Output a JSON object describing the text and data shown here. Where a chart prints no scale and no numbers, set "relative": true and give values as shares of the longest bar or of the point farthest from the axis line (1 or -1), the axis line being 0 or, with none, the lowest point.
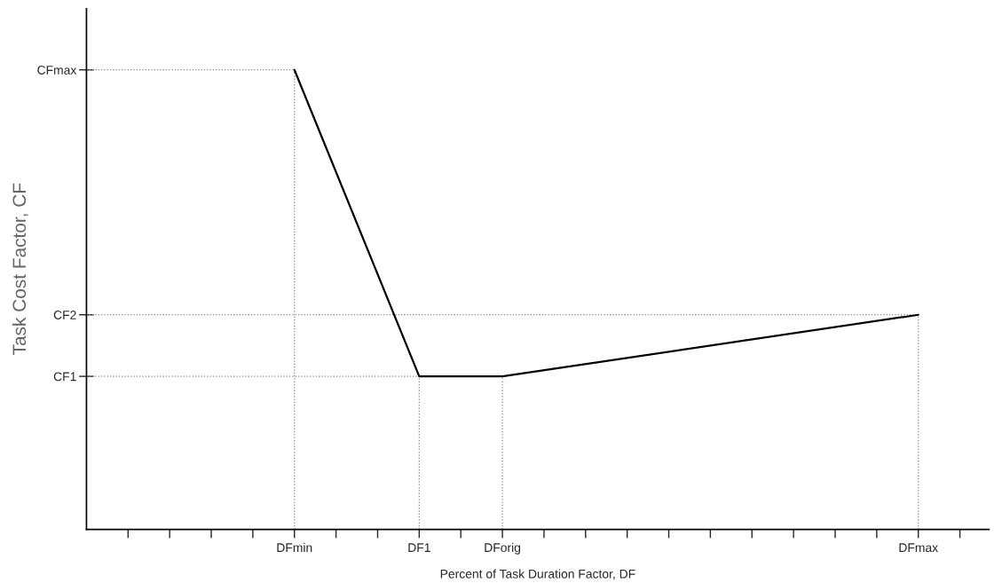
{
  "chart_data": {
    "type": "line",
    "xlabel": "Percent of Task Duration Factor, DF",
    "ylabel": "Task Cost Factor, CF",
    "relative": true,
    "categories": [
      null,
      null,
      null,
      null,
      "DFmin",
      null,
      null,
      "DF1",
      null,
      "DForig",
      null,
      null,
      null,
      null,
      null,
      null,
      null,
      null,
      null,
      "DFmax",
      null
    ],
    "series": [
      {
        "color": "#000000",
        "values": [
          null,
          null,
          null,
          null,
          1,
          null,
          null,
          0.333,
          null,
          0.333,
          null,
          null,
          null,
          null,
          null,
          null,
          null,
          null,
          null,
          0.467,
          null
        ]
      }
    ],
    "ref_lines": [
      {
        "axis": "y",
        "value": 1,
        "label": "CFmax",
        "color": "#888888",
        "line_style": "dotted"
      },
      {
        "axis": "y",
        "value": 0.467,
        "label": "CF2",
        "color": "#888888",
        "line_style": "dotted"
      },
      {
        "axis": "y",
        "value": 0.333,
        "label": "CF1",
        "color": "#888888",
        "line_style": "dotted"
      },
      {
        "axis": "x",
        "value": "DFmin",
        "color": "#888888",
        "line_style": "dotted"
      },
      {
        "axis": "x",
        "value": "DF1",
        "color": "#888888",
        "line_style": "dotted"
      },
      {
        "axis": "x",
        "value": "DForig",
        "color": "#888888",
        "line_style": "dotted"
      },
      {
        "axis": "x",
        "value": "DFmax",
        "color": "#888888",
        "line_style": "dotted"
      }
    ],
    "grid": false,
    "marker": "none",
    "line_style": "solid"
  }
}
